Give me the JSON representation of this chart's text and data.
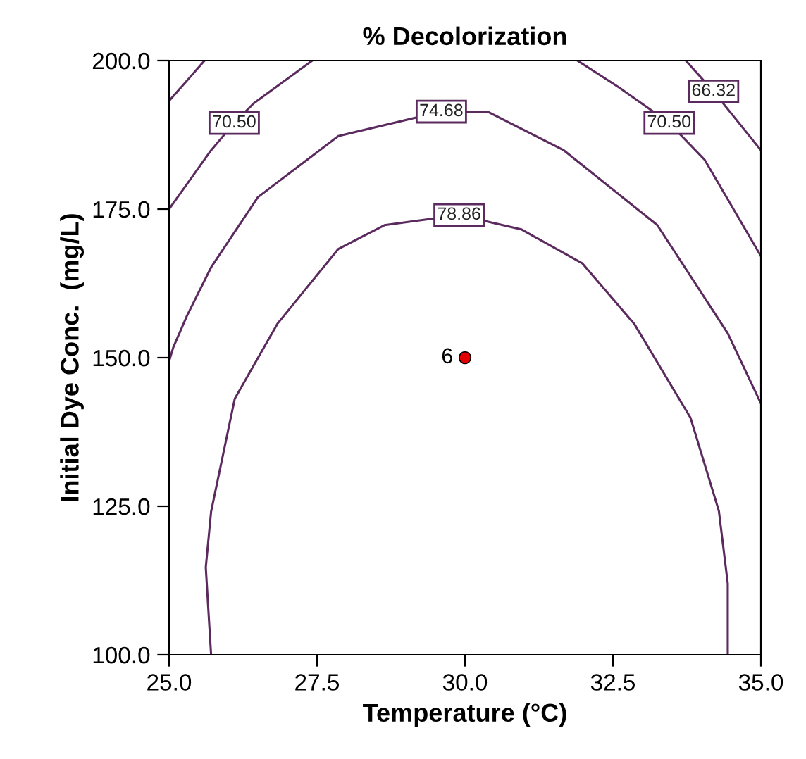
{
  "chart_data": {
    "type": "line",
    "title": "% Decolorization",
    "xlabel": "Temperature (°C)",
    "ylabel": "Initial Dye Conc.  (mg/L)",
    "xlim": [
      25,
      35
    ],
    "ylim": [
      100,
      200
    ],
    "xticks": [
      {
        "value": 25,
        "label": "25.0"
      },
      {
        "value": 27.5,
        "label": "27.5"
      },
      {
        "value": 30,
        "label": "30.0"
      },
      {
        "value": 32.5,
        "label": "32.5"
      },
      {
        "value": 35,
        "label": "35.0"
      }
    ],
    "yticks": [
      {
        "value": 100,
        "label": "100.0"
      },
      {
        "value": 125,
        "label": "125.0"
      },
      {
        "value": 150,
        "label": "150.0"
      },
      {
        "value": 175,
        "label": "175.0"
      },
      {
        "value": 200,
        "label": "200.0"
      }
    ],
    "grid": false,
    "series": [
      {
        "name": "78.86",
        "color": "#5b2a5e",
        "x": [
          25.71,
          25.62,
          25.71,
          26.11,
          26.83,
          27.86,
          28.64,
          29.9,
          30.95,
          31.98,
          32.86,
          33.81,
          34.29,
          34.44,
          34.44
        ],
        "values": [
          100,
          114.7,
          124.1,
          143.1,
          155.7,
          168.3,
          172.3,
          174.0,
          171.6,
          165.9,
          155.7,
          139.9,
          124.2,
          112,
          100
        ]
      },
      {
        "name": "74.68",
        "color": "#5b2a5e",
        "x": [
          25,
          25.07,
          25.3,
          25.71,
          26.5,
          27.86,
          29.6,
          30.4,
          31.67,
          33.25,
          34.44,
          35
        ],
        "values": [
          149.4,
          151.7,
          157,
          165.2,
          177,
          187.3,
          191.4,
          191.3,
          184.9,
          172.3,
          154.1,
          142.3
        ]
      },
      {
        "name": "70.50",
        "color": "#5b2a5e",
        "x": [
          27.42,
          26.43,
          26.1,
          25.71,
          25
        ],
        "values": [
          200,
          192.8,
          189.5,
          184.9,
          175.0
        ]
      },
      {
        "name": "70.50",
        "color": "#5b2a5e",
        "x": [
          31.9,
          32.6,
          33.45,
          34.05,
          35
        ],
        "values": [
          200,
          195.5,
          189.5,
          183.3,
          167.1
        ]
      },
      {
        "name": "66.32",
        "color": "#5b2a5e",
        "x": [
          33.73,
          34.2,
          35
        ],
        "values": [
          200,
          194.8,
          184.9
        ]
      },
      {
        "color": "#5b2a5e",
        "x": [
          25.6,
          25
        ],
        "values": [
          200,
          193.2
        ]
      },
      {
        "type": "scatter",
        "color": "#e00000",
        "marker": "circle",
        "x": [
          30
        ],
        "values": [
          150
        ]
      }
    ],
    "annotations": [
      {
        "text": "6",
        "x": 30,
        "y": 150
      }
    ]
  }
}
